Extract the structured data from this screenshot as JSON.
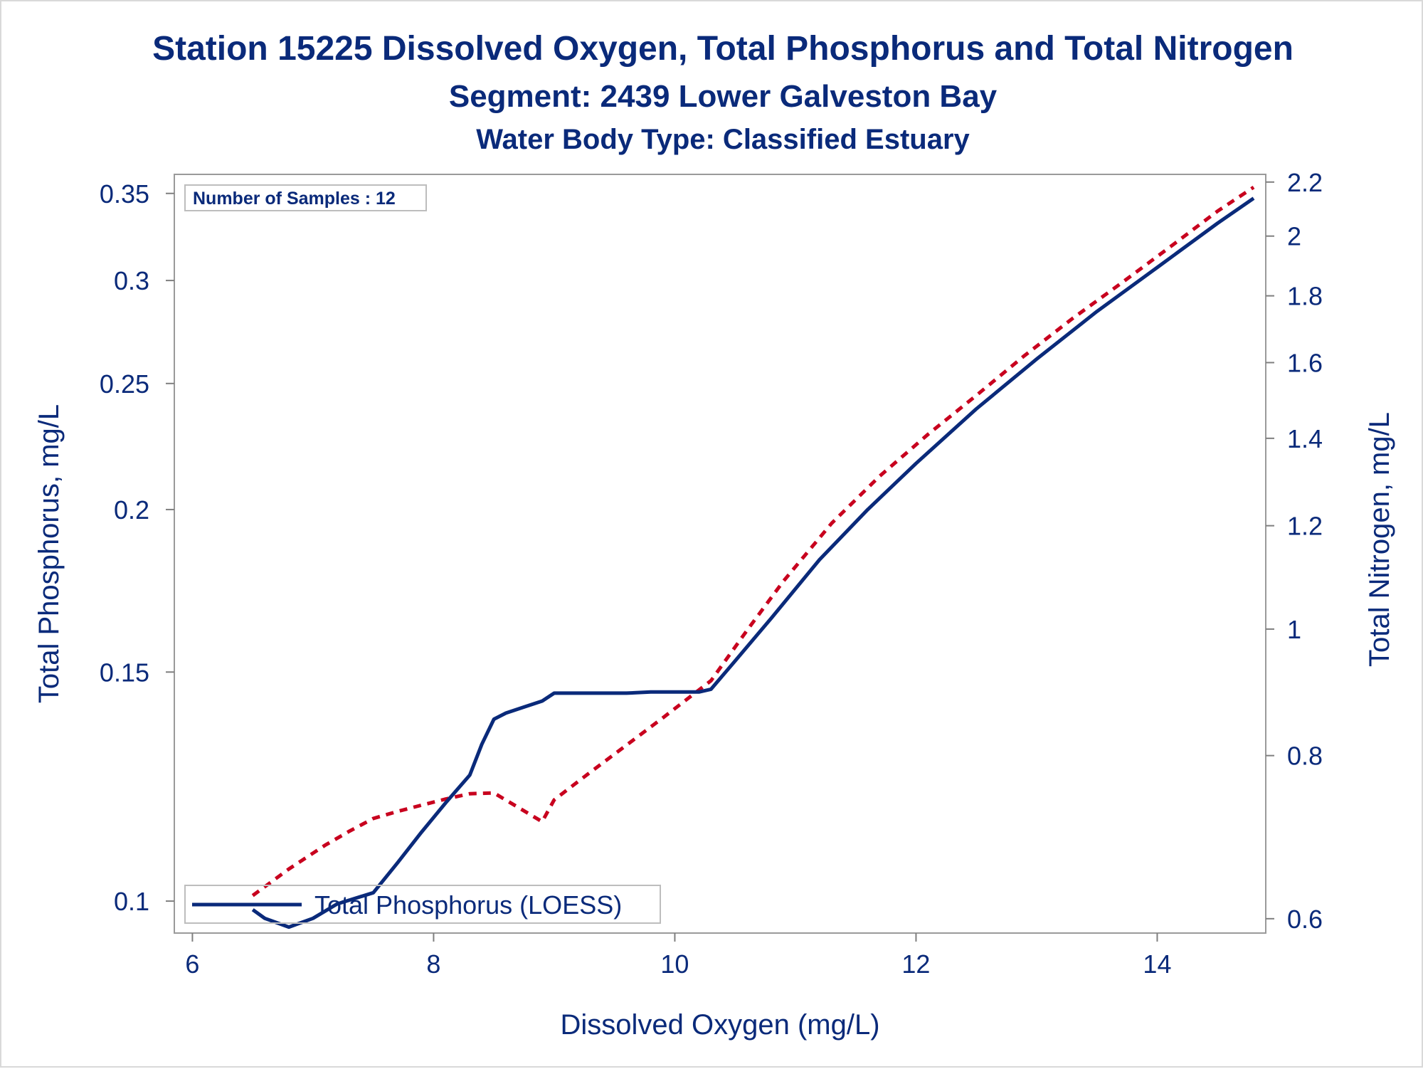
{
  "chart_data": {
    "type": "line",
    "title": "Station 15225  Dissolved Oxygen, Total Phosphorus and Total Nitrogen",
    "subtitle": "Segment: 2439  Lower Galveston Bay",
    "subtitle2": "Water Body Type: Classified Estuary",
    "xlabel": "Dissolved Oxygen (mg/L)",
    "ylabel": "Total Phosphorus, mg/L",
    "y2label": "Total Nitrogen, mg/L",
    "xlim": [
      5.85,
      14.9
    ],
    "ylim": [
      0.0945,
      0.362
    ],
    "y2lim": [
      0.585,
      2.23
    ],
    "xticks": [
      "6",
      "8",
      "10",
      "12",
      "14"
    ],
    "yticks": [
      "0.1",
      "0.15",
      "0.2",
      "0.25",
      "0.3",
      "0.35"
    ],
    "y2ticks": [
      "0.6",
      "0.8",
      "1",
      "1.2",
      "1.4",
      "1.6",
      "1.8",
      "2",
      "2.2"
    ],
    "y_scale": "log",
    "y2_scale": "log",
    "grid": false,
    "annotation": "Number of Samples : 12",
    "legend": {
      "position": "bottom-left",
      "entries": [
        "Total Phosphorus (LOESS)"
      ]
    },
    "series": [
      {
        "name": "Total Phosphorus (LOESS)",
        "axis": "left",
        "style": "solid",
        "color": "#0a2a7a",
        "x": [
          6.5,
          6.6,
          6.8,
          7.0,
          7.2,
          7.5,
          7.7,
          7.9,
          8.1,
          8.3,
          8.4,
          8.5,
          8.6,
          8.75,
          8.9,
          9.0,
          9.3,
          9.6,
          9.8,
          10.0,
          10.2,
          10.3,
          10.5,
          10.8,
          11.2,
          11.6,
          12.0,
          12.5,
          13.0,
          13.5,
          14.0,
          14.5,
          14.8
        ],
        "y": [
          0.0985,
          0.097,
          0.0955,
          0.097,
          0.0995,
          0.1015,
          0.107,
          0.113,
          0.119,
          0.125,
          0.132,
          0.138,
          0.1395,
          0.141,
          0.1425,
          0.1445,
          0.1445,
          0.1445,
          0.1448,
          0.1448,
          0.1448,
          0.1455,
          0.153,
          0.165,
          0.183,
          0.2,
          0.217,
          0.239,
          0.261,
          0.284,
          0.307,
          0.332,
          0.347
        ]
      },
      {
        "axis": "right",
        "style": "dashed",
        "color": "#c8001e",
        "x": [
          6.5,
          6.8,
          7.1,
          7.3,
          7.5,
          7.7,
          7.9,
          8.1,
          8.3,
          8.5,
          8.9,
          9.0,
          9.3,
          9.6,
          9.9,
          10.3,
          10.6,
          10.9,
          11.3,
          11.7,
          12.1,
          12.5,
          12.9,
          13.3,
          13.7,
          14.1,
          14.5,
          14.8
        ],
        "y": [
          0.625,
          0.655,
          0.683,
          0.7,
          0.716,
          0.725,
          0.733,
          0.741,
          0.748,
          0.749,
          0.712,
          0.74,
          0.777,
          0.815,
          0.855,
          0.913,
          0.998,
          1.088,
          1.205,
          1.31,
          1.41,
          1.51,
          1.62,
          1.73,
          1.84,
          1.96,
          2.09,
          2.18
        ]
      }
    ]
  }
}
